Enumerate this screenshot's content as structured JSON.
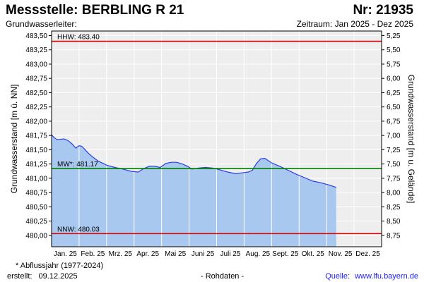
{
  "header": {
    "title": "Messstelle: BERBLING R 21",
    "number": "Nr: 21935",
    "subtitle_left": "Grundwasserleiter:",
    "subtitle_right": "Zeitraum: Jan 2025 - Dez 2025"
  },
  "footer": {
    "footnote": "* Abflussjahr (1977-2024)",
    "created_label": "erstellt:",
    "created_date": "09.12.2025",
    "raw_data": "- Rohdaten -",
    "source_label": "Quelle:",
    "source_link": "www.lfu.bayern.de"
  },
  "colors": {
    "fill": "#a9c8f0",
    "line": "#2a3fe0",
    "hhw": "#e00000",
    "nnw": "#e00000",
    "mw": "#008000",
    "grid": "#ffffff",
    "plot_bg": "#eeeeee"
  },
  "chart_data": {
    "type": "area",
    "ylabel": "Grundwasserstand [m ü. NN]",
    "ylabel_right": "Grundwasserstand [m u. Gelände]",
    "ylim": [
      479.8,
      483.58
    ],
    "xlim": [
      0,
      12
    ],
    "y_ticks": [
      "480,00",
      "480,25",
      "480,50",
      "480,75",
      "481,00",
      "481,25",
      "481,50",
      "481,75",
      "482,00",
      "482,25",
      "482,50",
      "482,75",
      "483,00",
      "483,25",
      "483,50"
    ],
    "y_tick_values": [
      480.0,
      480.25,
      480.5,
      480.75,
      481.0,
      481.25,
      481.5,
      481.75,
      482.0,
      482.25,
      482.5,
      482.75,
      483.0,
      483.25,
      483.5
    ],
    "y_right_ticks": [
      "8,75",
      "8,50",
      "8,25",
      "8,00",
      "7,75",
      "7,50",
      "7,25",
      "7,00",
      "6,75",
      "6,50",
      "6,25",
      "6,00",
      "5,75",
      "5,50",
      "5,25"
    ],
    "x_ticks": [
      "Jan. 25",
      "Feb. 25",
      "Mrz. 25",
      "Apr. 25",
      "Mai 25",
      "Juni 25",
      "Juli 25",
      "Aug. 25",
      "Sept. 25",
      "Okt. 25",
      "Nov. 25",
      "Dez. 25"
    ],
    "reference_lines": [
      {
        "label": "HHW: 483.40",
        "value": 483.4,
        "kind": "hhw"
      },
      {
        "label": "MW*: 481.17",
        "value": 481.17,
        "kind": "mw"
      },
      {
        "label": "NNW: 480.03",
        "value": 480.03,
        "kind": "nnw"
      }
    ],
    "series": [
      {
        "x": [
          0,
          0.08,
          0.18,
          0.3,
          0.45,
          0.6,
          0.75,
          0.88,
          1.0,
          1.1,
          1.2,
          1.33,
          1.5,
          1.7,
          2.0,
          2.3,
          2.6,
          2.9,
          3.15,
          3.35,
          3.55,
          3.75,
          3.95,
          4.15,
          4.35,
          4.55,
          4.75,
          4.95,
          5.1,
          5.35,
          5.6,
          5.85,
          6.1,
          6.4,
          6.7,
          7.0,
          7.15,
          7.3,
          7.45,
          7.6,
          7.75,
          8.0,
          8.3,
          8.6,
          8.9,
          9.2,
          9.5,
          9.8,
          10.1,
          10.35
        ],
        "values": [
          481.76,
          481.72,
          481.68,
          481.68,
          481.69,
          481.66,
          481.6,
          481.53,
          481.57,
          481.56,
          481.51,
          481.44,
          481.37,
          481.3,
          481.23,
          481.19,
          481.16,
          481.12,
          481.11,
          481.17,
          481.21,
          481.21,
          481.19,
          481.26,
          481.28,
          481.28,
          481.25,
          481.21,
          481.16,
          481.18,
          481.19,
          481.18,
          481.15,
          481.11,
          481.08,
          481.1,
          481.11,
          481.14,
          481.26,
          481.34,
          481.35,
          481.27,
          481.21,
          481.14,
          481.07,
          481.01,
          480.95,
          480.92,
          480.88,
          480.84
        ]
      }
    ],
    "grid": true
  }
}
